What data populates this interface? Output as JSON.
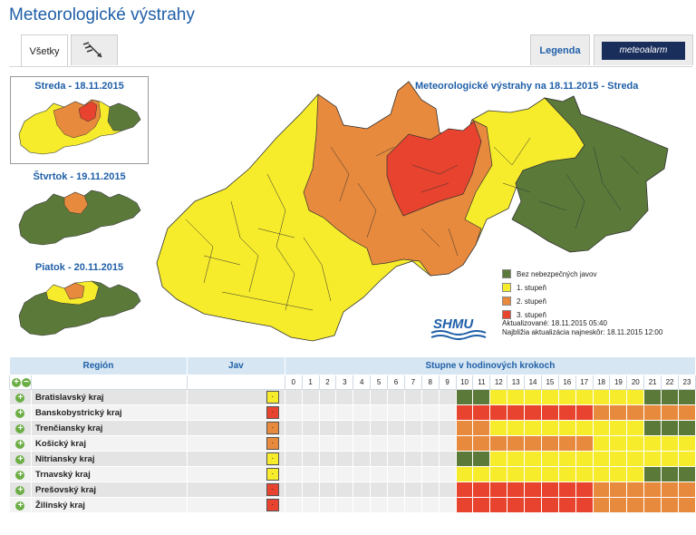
{
  "title": "Meteorologické výstrahy",
  "tabs": {
    "all": "Všetky",
    "legend": "Legenda",
    "meteoalarm": "meteoalarm"
  },
  "days": [
    {
      "label": "Streda - 18.11.2015"
    },
    {
      "label": "Štvrtok - 19.11.2015"
    },
    {
      "label": "Piatok - 20.11.2015"
    }
  ],
  "map_title": "Meteorologické výstrahy na 18.11.2015 - Streda",
  "colors": {
    "none": "#5b7a3a",
    "l1": "#f6ec2b",
    "l2": "#e88a3d",
    "l3": "#e8432e"
  },
  "legend": [
    "Bez nebezpečných javov",
    "1. stupeň",
    "2. stupeň",
    "3. stupeň"
  ],
  "logo": "SHMU",
  "updated": "Aktualizované: 18.11.2015 05:40",
  "next_update": "Najbližia aktualizácia najneskôr: 18.11.2015 12:00",
  "table": {
    "header_region": "Región",
    "header_jav": "Jav",
    "header_steps": "Stupne v hodinových krokoch",
    "hours": [
      "0",
      "1",
      "2",
      "3",
      "4",
      "5",
      "6",
      "7",
      "8",
      "9",
      "10",
      "11",
      "12",
      "13",
      "14",
      "15",
      "16",
      "17",
      "18",
      "19",
      "20",
      "21",
      "22",
      "23"
    ],
    "rows": [
      {
        "name": "Bratislavský kraj",
        "jav": "1",
        "cells": "..........00111111111000"
      },
      {
        "name": "Banskobystrický kraj",
        "jav": "3",
        "cells": "..........33333333222222"
      },
      {
        "name": "Trenčiansky kraj",
        "jav": "2",
        "cells": "..........22111111111000"
      },
      {
        "name": "Košický kraj",
        "jav": "2",
        "cells": "..........22222222111111"
      },
      {
        "name": "Nitriansky kraj",
        "jav": "1",
        "cells": "..........00111111111111"
      },
      {
        "name": "Trnavský kraj",
        "jav": "1",
        "cells": "..........11111111111000"
      },
      {
        "name": "Prešovský kraj",
        "jav": "3",
        "cells": "..........33333333222222"
      },
      {
        "name": "Žilinský kraj",
        "jav": "3",
        "cells": "..........33333333222222"
      }
    ]
  }
}
